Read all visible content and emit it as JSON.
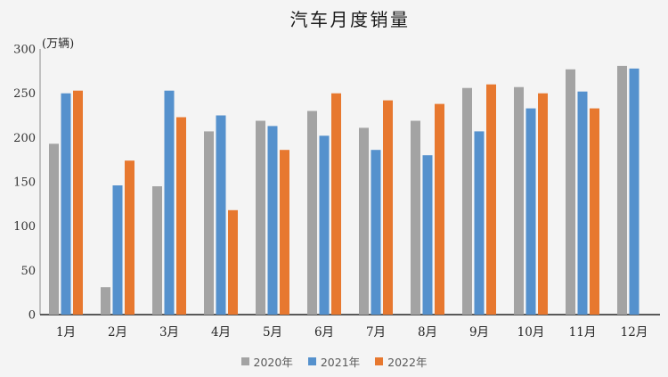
{
  "chart_data": {
    "type": "bar",
    "title": "汽车月度销量",
    "unit_label": "(万辆)",
    "categories": [
      "1月",
      "2月",
      "3月",
      "4月",
      "5月",
      "6月",
      "7月",
      "8月",
      "9月",
      "10月",
      "11月",
      "12月"
    ],
    "series": [
      {
        "name": "2020年",
        "color": "#a3a3a3",
        "values": [
          193,
          31,
          145,
          207,
          219,
          230,
          211,
          219,
          256,
          257,
          277,
          281
        ]
      },
      {
        "name": "2021年",
        "color": "#5591cd",
        "values": [
          250,
          146,
          253,
          225,
          213,
          202,
          186,
          180,
          207,
          233,
          252,
          278
        ]
      },
      {
        "name": "2022年",
        "color": "#e7782f",
        "values": [
          253,
          174,
          223,
          118,
          186,
          250,
          242,
          238,
          260,
          250,
          233,
          null
        ]
      }
    ],
    "ylim": [
      0,
      300
    ],
    "ytick_step": 50,
    "grid": false,
    "legend_position": "bottom",
    "colors": {
      "background": "#f4f4f4",
      "axis_line": "#595959",
      "y_axis_line": "#8c8c8c",
      "legend_text": "#595959"
    }
  }
}
